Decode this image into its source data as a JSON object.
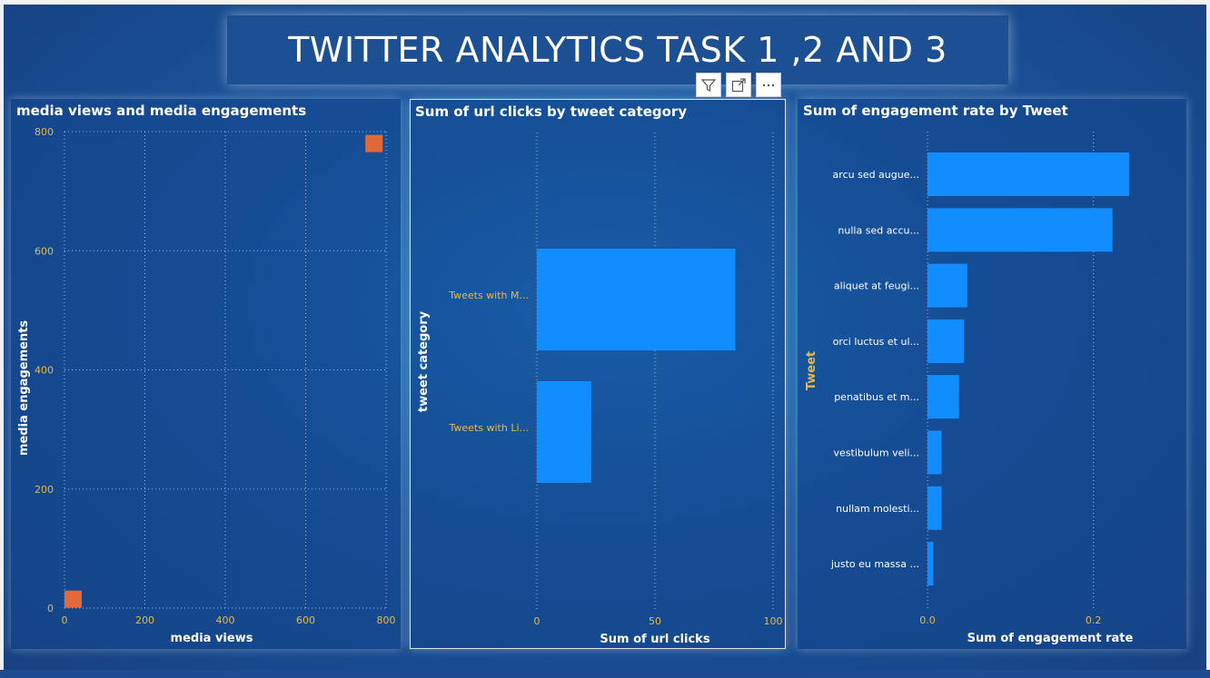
{
  "header": {
    "title": "TWITTER ANALYTICS TASK 1 ,2 AND 3"
  },
  "toolbar": {
    "icons": [
      "filter-icon",
      "focus-mode-icon",
      "more-options-icon"
    ]
  },
  "colors": {
    "scatter_marker": "#e0683a",
    "bar": "#118dff",
    "tick_text": "#e8b84a"
  },
  "chart_data": [
    {
      "type": "scatter",
      "title": "media views and media engagements",
      "xlabel": "media views",
      "ylabel": "media engagements",
      "xlim": [
        0,
        800
      ],
      "ylim": [
        0,
        800
      ],
      "xticks": [
        "0",
        "200",
        "400",
        "600",
        "800"
      ],
      "yticks": [
        "0",
        "200",
        "400",
        "600",
        "800"
      ],
      "points": [
        {
          "x": 20,
          "y": 15
        },
        {
          "x": 770,
          "y": 780
        }
      ],
      "grid": true
    },
    {
      "type": "bar",
      "orientation": "horizontal",
      "title": "Sum of url clicks by tweet category",
      "xlabel": "Sum of url clicks",
      "ylabel": "tweet category",
      "categories": [
        "Tweets with M...",
        "Tweets with Li..."
      ],
      "values": [
        84,
        23
      ],
      "xlim": [
        0,
        100
      ],
      "xticks": [
        "0",
        "50",
        "100"
      ],
      "grid": true
    },
    {
      "type": "bar",
      "orientation": "horizontal",
      "title": "Sum of engagement rate by Tweet",
      "xlabel": "Sum of engagement rate",
      "ylabel": "Tweet",
      "categories": [
        "arcu sed augue...",
        "nulla sed accu...",
        "aliquet at feugi...",
        "orci luctus et ul...",
        "penatibus et m...",
        "vestibulum veli...",
        "nullam molesti...",
        "justo eu massa ..."
      ],
      "values": [
        0.243,
        0.223,
        0.048,
        0.044,
        0.038,
        0.017,
        0.017,
        0.007
      ],
      "xlim": [
        0,
        0.3
      ],
      "xticks": [
        "0.0",
        "0.2"
      ],
      "grid": true
    }
  ]
}
